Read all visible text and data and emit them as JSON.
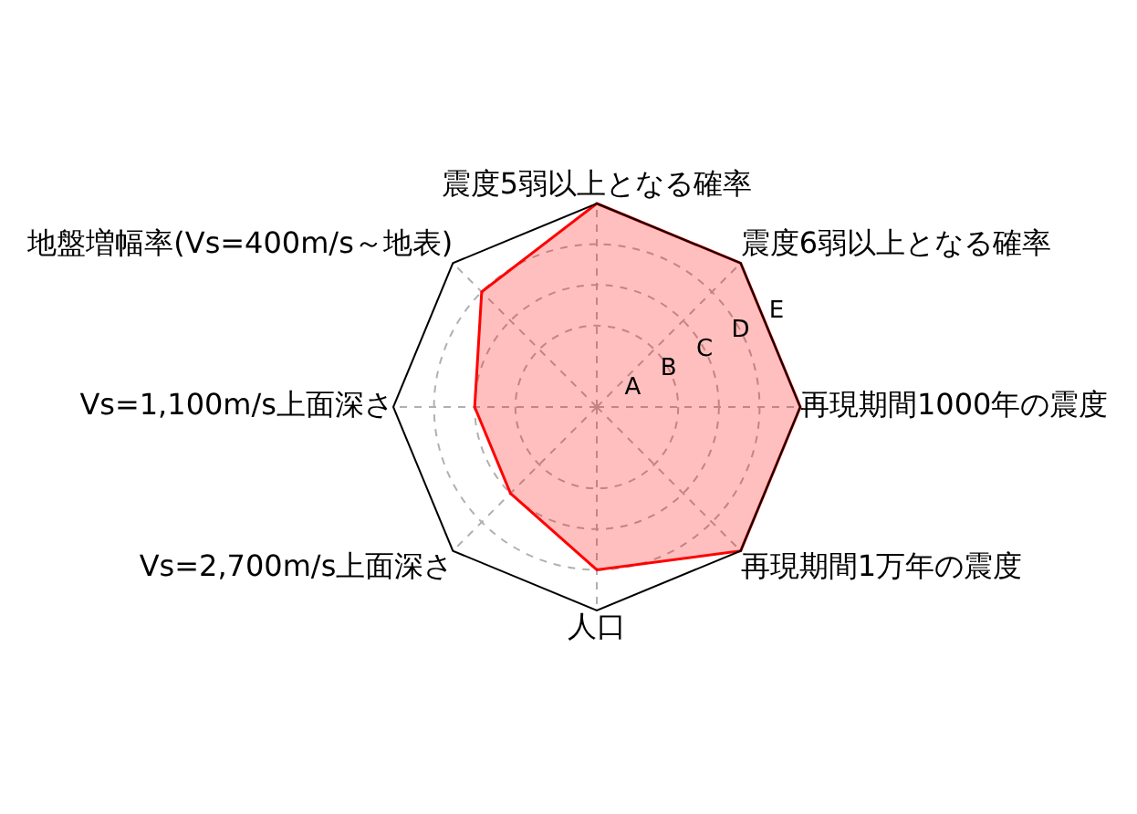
{
  "chart_data": {
    "type": "radar",
    "categories": [
      "震度5弱以上となる確率",
      "震度6弱以上となる確率",
      "再現期間1000年の震度",
      "再現期間1万年の震度",
      "人口",
      "Vs=2,700m/s上面深さ",
      "Vs=1,100m/s上面深さ",
      "地盤増幅率(Vs=400m/s～地表)"
    ],
    "series": [
      {
        "color": "#ff0000",
        "values": [
          5,
          5,
          5,
          5,
          4,
          3,
          3,
          4
        ]
      }
    ],
    "ylim": [
      0,
      5
    ],
    "yticks": [
      {
        "value": 1,
        "label": "A"
      },
      {
        "value": 2,
        "label": "B"
      },
      {
        "value": 3,
        "label": "C"
      },
      {
        "value": 4,
        "label": "D"
      },
      {
        "value": 5,
        "label": "E"
      }
    ],
    "grid": true
  }
}
